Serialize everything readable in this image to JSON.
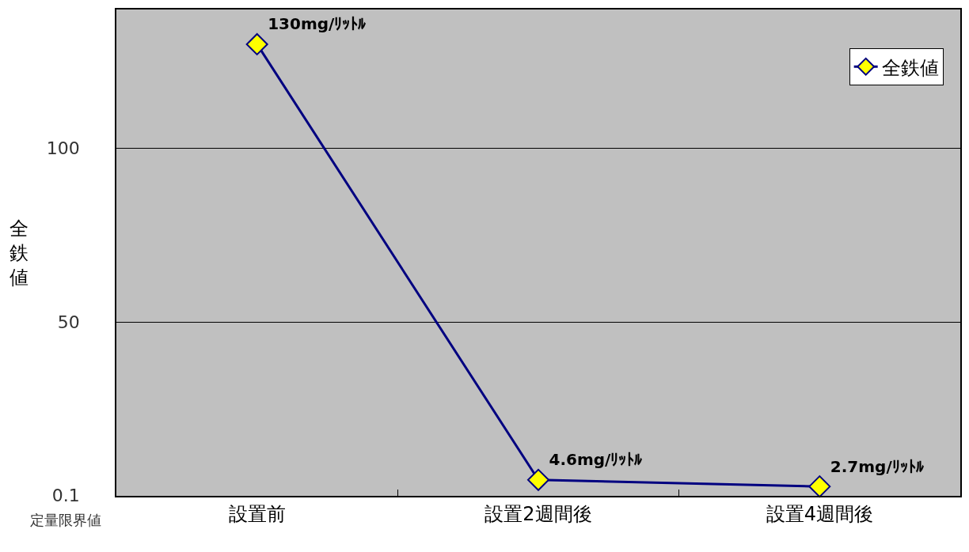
{
  "chart_data": {
    "type": "line",
    "ylabel": "全鉄値",
    "categories": [
      "設置前",
      "設置2週間後",
      "設置4週間後"
    ],
    "series": [
      {
        "name": "全鉄値",
        "color": "#000080",
        "values": [
          130,
          4.6,
          2.7
        ],
        "value_labels": [
          "130mg/ﾘｯﾄﾙ",
          "4.6mg/ﾘｯﾄﾙ",
          "2.7mg/ﾘｯﾄﾙ"
        ]
      }
    ],
    "ylim": [
      0,
      140
    ],
    "yticks": [
      0.1,
      50,
      100
    ],
    "annotations": [
      "定量限界値"
    ],
    "grid": "y",
    "legend": "top right",
    "marker": "diamond",
    "line_style": "solid"
  }
}
